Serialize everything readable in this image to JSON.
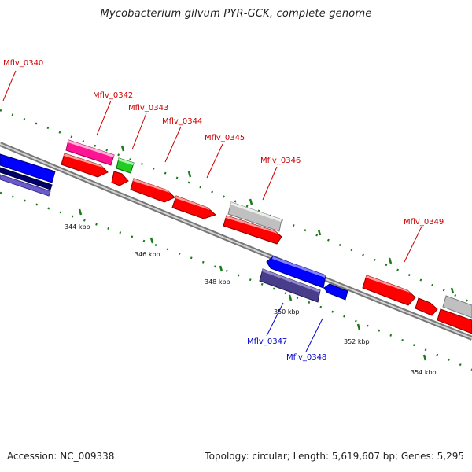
{
  "title": "Mycobacterium gilvum PYR-GCK, complete genome",
  "footer": {
    "accession": "Accession: NC_009338",
    "topology": "Topology: circular; Length: 5,619,607 bp; Genes: 5,295"
  },
  "colors": {
    "forward": "#ff0000",
    "reverse": "#0000ff",
    "pink": "#ff1493",
    "green": "#22cc22",
    "gray": "#c0c0c0",
    "slate": "#483d8b",
    "label_forward": "#cc0000",
    "label_reverse": "#0000cc",
    "tick": "#1a7a1a"
  },
  "kbp_labels": [
    "344 kbp",
    "346 kbp",
    "348 kbp",
    "350 kbp",
    "352 kbp",
    "354 kbp"
  ],
  "gene_labels": [
    {
      "text": "Mflv_0340",
      "strand": "forward"
    },
    {
      "text": "Mflv_0342",
      "strand": "forward"
    },
    {
      "text": "Mflv_0343",
      "strand": "forward"
    },
    {
      "text": "Mflv_0344",
      "strand": "forward"
    },
    {
      "text": "Mflv_0345",
      "strand": "forward"
    },
    {
      "text": "Mflv_0346",
      "strand": "forward"
    },
    {
      "text": "Mflv_0349",
      "strand": "forward"
    },
    {
      "text": "Mflv_0347",
      "strand": "reverse"
    },
    {
      "text": "Mflv_0348",
      "strand": "reverse"
    }
  ]
}
